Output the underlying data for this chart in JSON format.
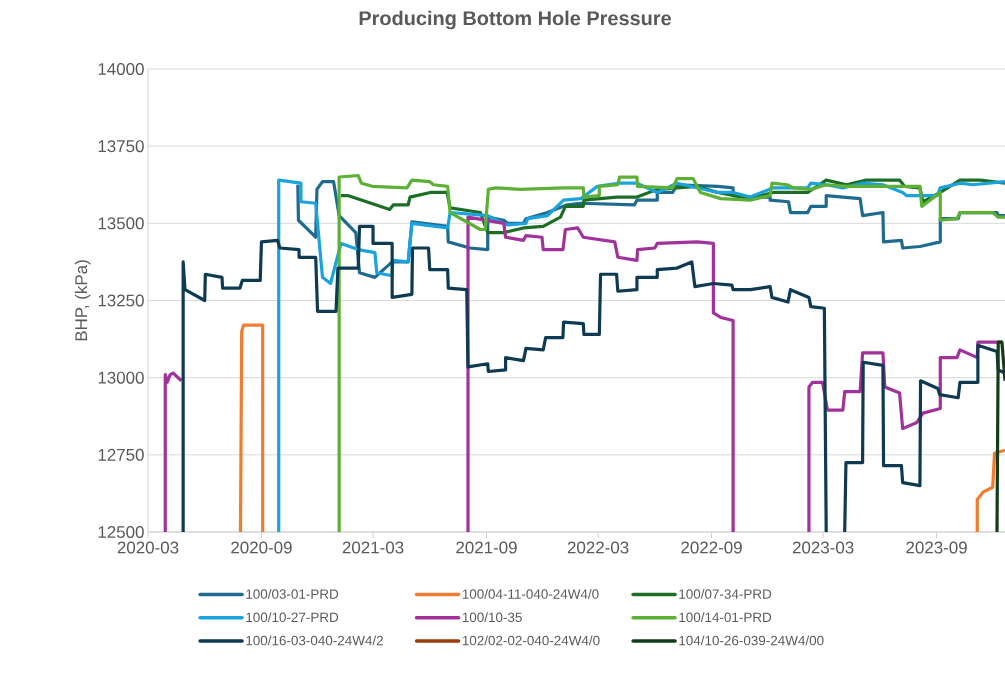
{
  "chart_data": {
    "type": "line",
    "title": "Producing Bottom Hole Pressure",
    "ylabel": "BHP, (kPa)",
    "xlim": [
      "2020-03-01",
      "2023-12-21"
    ],
    "xticks": [
      "2020-03",
      "2020-09",
      "2021-03",
      "2021-09",
      "2022-03",
      "2022-09",
      "2023-03",
      "2023-09"
    ],
    "ylim": [
      12500,
      14000
    ],
    "yticks": [
      12500,
      12750,
      13000,
      13250,
      13500,
      13750,
      14000
    ],
    "grid": "y",
    "legend": "bottom",
    "line_style": "solid",
    "series": [
      {
        "name": "100/03-01-PRD",
        "color": "#1f6a8f",
        "x": [
          "2020-10-30",
          "2020-10-31",
          "2020-11-28",
          "2020-11-30",
          "2020-12-09",
          "2020-12-27",
          "2021-01-05",
          "2021-02-01",
          "2021-02-07",
          "2021-03-04",
          "2021-04-01",
          "2021-04-27",
          "2021-05-03",
          "2021-06-30",
          "2021-07-01",
          "2021-08-05",
          "2021-09-03",
          "2021-09-03",
          "2021-09-29",
          "2021-10-05",
          "2021-10-31",
          "2021-11-04",
          "2021-12-09",
          "2022-01-10",
          "2022-02-01",
          "2022-04-29",
          "2022-05-03",
          "2022-06-05",
          "2022-06-05",
          "2022-06-30",
          "2022-07-07",
          "2022-09-11",
          "2022-10-06",
          "2022-10-06",
          "2022-11-03",
          "2022-12-05",
          "2022-12-05",
          "2023-01-04",
          "2023-01-07",
          "2023-02-04",
          "2023-02-09",
          "2023-03-06",
          "2023-03-06",
          "2023-04-02",
          "2023-04-30",
          "2023-05-04",
          "2023-06-06",
          "2023-06-07",
          "2023-07-06",
          "2023-07-08",
          "2023-08-05",
          "2023-09-07",
          "2023-09-07",
          "2023-10-06",
          "2023-10-09",
          "2023-12-08",
          "2023-12-10",
          "2023-12-21"
        ],
        "values": [
          13625,
          13510,
          13455,
          13610,
          13635,
          13635,
          13525,
          13470,
          13340,
          13325,
          13375,
          13375,
          13505,
          13490,
          13440,
          13420,
          13415,
          13520,
          13510,
          13500,
          13500,
          13515,
          13535,
          13560,
          13565,
          13560,
          13575,
          13575,
          13600,
          13600,
          13625,
          13620,
          13615,
          13590,
          13585,
          13585,
          13575,
          13570,
          13535,
          13535,
          13555,
          13555,
          13590,
          13585,
          13580,
          13525,
          13535,
          13440,
          13445,
          13420,
          13425,
          13440,
          13515,
          13515,
          13535,
          13535,
          13525,
          13525
        ]
      },
      {
        "name": "100/04-11-040-24W4/0",
        "color": "#ee7d31",
        "x": [
          "2020-07-29",
          "2020-07-31",
          "2020-08-03",
          "2020-09-03",
          "2020-09-03",
          null,
          "2023-11-06",
          "2023-11-06",
          "2023-11-16",
          "2023-12-01",
          "2023-12-04",
          "2023-12-21"
        ],
        "values": [
          12500,
          13150,
          13170,
          13170,
          12500,
          null,
          12500,
          12605,
          12630,
          12645,
          12755,
          12765
        ]
      },
      {
        "name": "100/07-34-PRD",
        "color": "#1c6e27",
        "x": [
          "2021-01-08",
          "2021-01-19",
          "2021-03-28",
          "2021-04-03",
          "2021-04-27",
          "2021-04-30",
          "2021-06-02",
          "2021-06-29",
          "2021-07-04",
          "2021-08-22",
          "2021-09-03",
          "2021-09-29",
          "2021-10-31",
          "2021-12-02",
          "2021-12-30",
          "2022-01-07",
          "2022-02-05",
          "2022-02-06",
          "2022-03-31",
          "2022-05-03",
          "2022-06-05",
          "2022-07-07",
          "2022-08-09",
          "2022-09-11",
          "2022-11-03",
          "2022-12-10",
          "2023-02-04",
          "2023-03-06",
          "2023-04-08",
          "2023-05-10",
          "2023-07-03",
          "2023-07-11",
          "2023-08-05",
          "2023-08-10",
          "2023-09-07",
          "2023-10-09",
          "2023-11-11",
          "2023-12-21"
        ],
        "values": [
          13590,
          13590,
          13545,
          13560,
          13560,
          13585,
          13600,
          13600,
          13550,
          13535,
          13470,
          13470,
          13485,
          13490,
          13520,
          13555,
          13555,
          13575,
          13585,
          13585,
          13610,
          13615,
          13620,
          13600,
          13580,
          13600,
          13600,
          13640,
          13625,
          13640,
          13640,
          13620,
          13615,
          13570,
          13600,
          13640,
          13640,
          13630
        ]
      },
      {
        "name": "100/10-27-PRD",
        "color": "#1aa3dc",
        "x": [
          "2020-09-29",
          "2020-09-29",
          "2020-11-04",
          "2020-11-04",
          "2020-11-28",
          "2020-12-09",
          "2020-12-22",
          "2021-01-08",
          "2021-02-05",
          "2021-03-04",
          "2021-03-07",
          "2021-04-01",
          "2021-04-02",
          "2021-04-27",
          "2021-05-03",
          "2021-06-30",
          "2021-07-04",
          "2021-09-03",
          "2021-10-05",
          "2021-11-04",
          "2021-11-07",
          "2021-12-09",
          "2022-01-04",
          "2022-02-01",
          "2022-02-28",
          "2022-04-05",
          "2022-05-03",
          "2022-06-05",
          "2022-07-07",
          "2022-09-11",
          "2022-10-06",
          "2022-11-03",
          "2022-12-10",
          "2023-02-04",
          "2023-02-09",
          "2023-03-06",
          "2023-04-02",
          "2023-05-04",
          "2023-06-06",
          "2023-07-08",
          "2023-07-14",
          "2023-09-02",
          "2023-09-07",
          "2023-10-09",
          "2023-10-30",
          "2023-12-21"
        ],
        "values": [
          12500,
          13640,
          13630,
          13570,
          13565,
          13325,
          13305,
          13435,
          13415,
          13405,
          13340,
          13330,
          13380,
          13375,
          13500,
          13485,
          13535,
          13525,
          13495,
          13500,
          13515,
          13525,
          13575,
          13580,
          13620,
          13630,
          13630,
          13600,
          13630,
          13600,
          13600,
          13585,
          13615,
          13615,
          13630,
          13625,
          13615,
          13630,
          13625,
          13600,
          13590,
          13590,
          13615,
          13630,
          13625,
          13635
        ]
      },
      {
        "name": "100/10-35",
        "color": "#a1329a",
        "x": [
          "2020-03-29",
          "2020-03-29",
          "2020-04-01",
          "2020-04-06",
          "2020-04-11",
          "2020-04-24",
          null,
          "2021-08-02",
          "2021-08-02",
          "2021-09-29",
          "2021-10-02",
          "2021-10-31",
          "2021-11-04",
          "2021-11-30",
          "2021-12-02",
          "2022-01-03",
          "2022-01-07",
          "2022-01-27",
          "2022-02-05",
          "2022-03-28",
          "2022-04-02",
          "2022-05-03",
          "2022-05-04",
          "2022-06-01",
          "2022-06-05",
          "2022-08-09",
          "2022-09-04",
          "2022-09-04",
          "2022-09-16",
          "2022-10-06",
          "2022-10-06",
          null,
          "2023-02-06",
          "2023-02-06",
          "2023-02-12",
          "2023-02-28",
          "2023-03-08",
          "2023-04-02",
          "2023-04-05",
          "2023-04-30",
          "2023-05-04",
          "2023-06-06",
          "2023-06-09",
          "2023-07-03",
          "2023-07-08",
          "2023-07-31",
          "2023-08-10",
          "2023-09-07",
          "2023-09-07",
          "2023-10-04",
          "2023-10-09",
          "2023-11-06",
          "2023-11-07",
          "2023-12-16"
        ],
        "values": [
          12500,
          13010,
          12985,
          13010,
          13015,
          12990,
          null,
          12500,
          13520,
          13500,
          13455,
          13445,
          13460,
          13455,
          13415,
          13415,
          13480,
          13485,
          13455,
          13440,
          13390,
          13380,
          13415,
          13420,
          13435,
          13440,
          13435,
          13210,
          13195,
          13185,
          12500,
          null,
          12500,
          12970,
          12985,
          12985,
          12895,
          12895,
          12955,
          12955,
          13080,
          13080,
          12970,
          12950,
          12835,
          12855,
          12885,
          12900,
          13065,
          13065,
          13090,
          13065,
          13115,
          13115
        ]
      },
      {
        "name": "100/14-01-PRD",
        "color": "#5cb035",
        "x": [
          "2021-01-05",
          "2021-01-05",
          "2021-02-05",
          "2021-02-10",
          "2021-02-28",
          "2021-04-25",
          "2021-05-03",
          "2021-06-01",
          "2021-06-07",
          "2021-06-30",
          "2021-07-04",
          "2021-08-22",
          "2021-08-30",
          "2021-09-04",
          "2021-09-16",
          "2021-10-26",
          "2022-01-04",
          "2022-02-05",
          "2022-02-06",
          "2022-03-03",
          "2022-03-03",
          "2022-04-02",
          "2022-04-05",
          "2022-05-03",
          "2022-05-04",
          "2022-06-30",
          "2022-07-07",
          "2022-08-02",
          "2022-08-14",
          "2022-09-16",
          "2022-11-03",
          "2022-12-05",
          "2022-12-08",
          "2023-01-02",
          "2023-01-12",
          "2023-02-09",
          "2023-03-06",
          "2023-04-08",
          "2023-08-05",
          "2023-08-08",
          "2023-09-07",
          "2023-09-07",
          "2023-10-04",
          "2023-10-09",
          "2023-12-01",
          "2023-12-10",
          "2023-12-21"
        ],
        "values": [
          12500,
          13650,
          13655,
          13630,
          13620,
          13615,
          13640,
          13635,
          13625,
          13620,
          13535,
          13480,
          13480,
          13610,
          13615,
          13610,
          13615,
          13615,
          13585,
          13590,
          13620,
          13625,
          13650,
          13650,
          13620,
          13615,
          13645,
          13645,
          13600,
          13580,
          13575,
          13590,
          13630,
          13625,
          13615,
          13610,
          13625,
          13620,
          13620,
          13555,
          13600,
          13510,
          13515,
          13535,
          13535,
          13520,
          13520
        ]
      },
      {
        "name": "100/16-03-040-24W4/2",
        "color": "#0e3a52",
        "x": [
          "2020-04-27",
          "2020-04-27",
          "2020-04-30",
          "2020-06-01",
          "2020-06-02",
          "2020-06-29",
          "2020-06-30",
          "2020-07-28",
          "2020-08-01",
          "2020-08-30",
          "2020-09-01",
          "2020-09-27",
          "2020-10-01",
          "2020-11-01",
          "2020-11-01",
          "2020-11-28",
          "2020-12-01",
          "2020-12-31",
          "2021-01-03",
          "2021-02-05",
          "2021-02-07",
          "2021-03-01",
          "2021-03-01",
          "2021-04-01",
          "2021-04-01",
          "2021-05-03",
          "2021-05-04",
          "2021-05-30",
          "2021-06-01",
          "2021-06-30",
          "2021-07-01",
          "2021-07-31",
          "2021-08-02",
          "2021-09-03",
          "2021-09-04",
          "2021-10-02",
          "2021-10-02",
          "2021-10-31",
          "2021-11-04",
          "2021-12-02",
          "2021-12-06",
          "2022-01-03",
          "2022-01-04",
          "2022-02-05",
          "2022-02-06",
          "2022-03-03",
          "2022-03-05",
          "2022-03-31",
          "2022-04-02",
          "2022-05-03",
          "2022-05-03",
          "2022-06-05",
          "2022-06-05",
          "2022-07-07",
          "2022-07-31",
          "2022-08-05",
          "2022-09-04",
          "2022-10-04",
          "2022-10-06",
          "2022-11-03",
          "2022-12-05",
          "2022-12-08",
          "2023-01-03",
          "2023-01-07",
          "2023-02-06",
          "2023-02-09",
          "2023-03-03",
          "2023-03-06",
          null,
          "2023-04-05",
          "2023-04-07",
          "2023-05-04",
          "2023-05-05",
          "2023-06-06",
          "2023-06-07",
          "2023-07-06",
          "2023-07-08",
          "2023-08-05",
          "2023-08-06",
          "2023-09-03",
          "2023-09-06",
          "2023-10-06",
          "2023-10-09",
          "2023-11-07",
          "2023-11-07",
          "2023-12-08",
          "2023-12-10",
          "2023-12-21"
        ],
        "values": [
          12500,
          13375,
          13285,
          13250,
          13335,
          13325,
          13290,
          13290,
          13315,
          13315,
          13440,
          13445,
          13420,
          13415,
          13390,
          13390,
          13215,
          13215,
          13355,
          13355,
          13490,
          13490,
          13435,
          13435,
          13260,
          13270,
          13420,
          13420,
          13350,
          13350,
          13290,
          13285,
          13035,
          13045,
          13020,
          13025,
          13065,
          13055,
          13095,
          13090,
          13130,
          13130,
          13180,
          13175,
          13140,
          13140,
          13335,
          13335,
          13280,
          13285,
          13325,
          13325,
          13350,
          13355,
          13375,
          13295,
          13305,
          13300,
          13285,
          13285,
          13295,
          13260,
          13245,
          13285,
          13260,
          13230,
          13225,
          12500,
          null,
          12500,
          12725,
          12725,
          13050,
          13040,
          12715,
          12715,
          12660,
          12650,
          12990,
          12965,
          12945,
          12935,
          12985,
          12985,
          13105,
          13085,
          13025,
          13015
        ]
      },
      {
        "name": "102/02-02-040-24W4/0",
        "color": "#9a3d0c"
      },
      {
        "name": "104/10-26-039-24W4/00",
        "color": "#123d18",
        "x": [
          "2023-12-08",
          "2023-12-10",
          "2023-12-16",
          "2023-12-21"
        ],
        "values": [
          12500,
          13115,
          13115,
          12990
        ]
      }
    ]
  }
}
